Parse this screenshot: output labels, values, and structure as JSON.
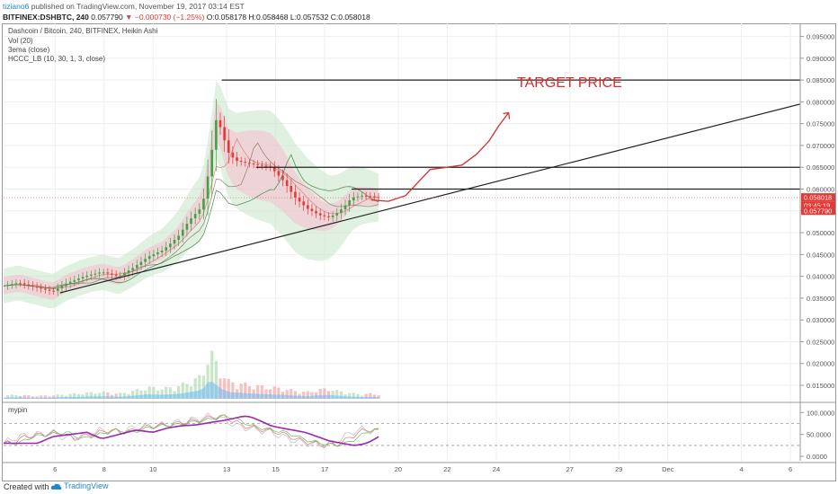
{
  "header": {
    "user": "tiziano6",
    "published_text": "published on TradingView.com, November 19, 2017 03:14 EST",
    "symbol": "BITFINEX:DSHBTC, 240",
    "change_text": "▼ −0.000730 (−1.25%)",
    "last": "0.057790",
    "ohlc_text": "O:0.058178 H:0.058468 L:0.057532 C:0.058018"
  },
  "legend": {
    "title": "Dashcoin / Bitcoin, 240, BITFINEX, Heikin Ashi",
    "vol": "Vol (20)",
    "ema": "3ema (close)",
    "hccc": "HCCC_LB (10, 30, 1, 3, close)",
    "osc": "mypin"
  },
  "annotation": {
    "target_text": "TARGET PRICE"
  },
  "price_tags": {
    "close": "0.058018",
    "countdown": "03:45:19",
    "last": "0.057790"
  },
  "colors": {
    "up": "#26a69a",
    "down": "#ef5350",
    "band_green": "#c8e6c9",
    "band_red": "#f8bbd0",
    "annotation_red": "#d32f2f",
    "volume_blue": "#64b5f6",
    "osc_purple": "#9c27b0"
  },
  "footer": {
    "created_with": "Created with",
    "brand": "TradingView"
  },
  "chart_data": {
    "type": "candlestick",
    "title": "Dashcoin / Bitcoin, 240, BITFINEX, Heikin Ashi",
    "y_ticks": [
      "0.095000",
      "0.090000",
      "0.085000",
      "0.080000",
      "0.075000",
      "0.070000",
      "0.065000",
      "0.060000",
      "0.055000",
      "0.050000",
      "0.045000",
      "0.040000",
      "0.035000",
      "0.030000",
      "0.025000",
      "0.020000",
      "0.015000"
    ],
    "ylim": [
      0.0115,
      0.098
    ],
    "x_ticks": [
      "6",
      "8",
      "10",
      "13",
      "15",
      "17",
      "20",
      "22",
      "24",
      "27",
      "29",
      "Dec",
      "4",
      "6"
    ],
    "x_tick_day_index": [
      6,
      8,
      10,
      13,
      15,
      17,
      20,
      22,
      24,
      27,
      29,
      31,
      34,
      36
    ],
    "xlim": [
      3.9,
      36.4
    ],
    "horizontal_levels": [
      0.085,
      0.065,
      0.06
    ],
    "trendline": {
      "from": [
        6.2,
        0.0362
      ],
      "to": [
        36.4,
        0.0795
      ]
    },
    "price_path_days": [
      3.9,
      4.5,
      5.2,
      5.9,
      6.5,
      7.2,
      7.9,
      8.6,
      9.2,
      9.8,
      10.4,
      11.0,
      11.5,
      12.0,
      12.3,
      12.6,
      12.8,
      13.1,
      13.4,
      13.8,
      14.3,
      14.8,
      15.3,
      15.8,
      16.3,
      16.8,
      17.2,
      17.5,
      17.8,
      18.1,
      18.5,
      18.9,
      19.2
    ],
    "price_path_values": [
      0.0378,
      0.0385,
      0.0375,
      0.0365,
      0.0385,
      0.04,
      0.041,
      0.04,
      0.042,
      0.0445,
      0.046,
      0.049,
      0.053,
      0.056,
      0.065,
      0.077,
      0.073,
      0.068,
      0.0665,
      0.066,
      0.0655,
      0.065,
      0.062,
      0.058,
      0.0555,
      0.054,
      0.0535,
      0.0545,
      0.056,
      0.058,
      0.0585,
      0.0583,
      0.058
    ],
    "volume_path_values": [
      6,
      7,
      5,
      6,
      8,
      10,
      12,
      9,
      14,
      20,
      18,
      22,
      30,
      40,
      85,
      60,
      45,
      30,
      28,
      25,
      22,
      20,
      18,
      14,
      12,
      16,
      18,
      14,
      12,
      10,
      8,
      9,
      8
    ],
    "oscillator_ticks": [
      "100.0000",
      "50.0000",
      "0.0000"
    ],
    "oscillator_ylim": [
      -10,
      115
    ],
    "oscillator_path_values": [
      30,
      45,
      50,
      55,
      40,
      50,
      60,
      55,
      65,
      70,
      72,
      78,
      82,
      88,
      92,
      90,
      85,
      78,
      70,
      65,
      60,
      55,
      45,
      35,
      30,
      25,
      28,
      35,
      45,
      55,
      62,
      58,
      55
    ],
    "oscillator_levels": [
      75,
      25
    ],
    "projection_path_days": [
      18.9,
      19.6,
      20.3,
      20.8,
      21.3,
      22.0,
      22.6,
      23.2,
      23.7,
      24.1,
      24.5
    ],
    "projection_path_values": [
      0.0575,
      0.0572,
      0.0585,
      0.0615,
      0.0645,
      0.065,
      0.0655,
      0.068,
      0.071,
      0.0745,
      0.0775
    ]
  }
}
